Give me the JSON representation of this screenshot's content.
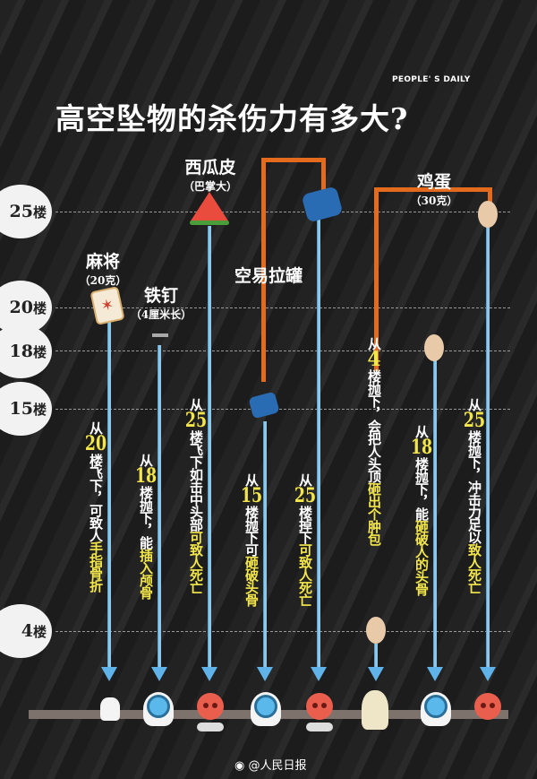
{
  "logo": "PEOPLE' S DAILY",
  "title": "高空坠物的杀伤力有多大?",
  "floors": [
    {
      "n": "25",
      "u": "楼"
    },
    {
      "n": "20",
      "u": "楼"
    },
    {
      "n": "18",
      "u": "楼"
    },
    {
      "n": "15",
      "u": "楼"
    },
    {
      "n": "4",
      "u": "楼"
    }
  ],
  "objects": {
    "mahjong": {
      "name": "麻将",
      "sub": "（20克）"
    },
    "nail": {
      "name": "铁钉",
      "sub": "（4厘米长）"
    },
    "watermelon": {
      "name": "西瓜皮",
      "sub": "（巴掌大）"
    },
    "can": {
      "name": "空易拉罐"
    },
    "egg": {
      "name": "鸡蛋",
      "sub": "（30克）"
    }
  },
  "descriptions": [
    {
      "a": "从",
      "num": "20",
      "b": "楼飞下，可致人",
      "hl": "手指骨折"
    },
    {
      "a": "从",
      "num": "18",
      "b": "楼抛下，能",
      "hl": "插入颅骨"
    },
    {
      "a": "从",
      "num": "25",
      "b": "楼飞下如击中头部",
      "hl": "可致人死亡"
    },
    {
      "a": "从",
      "num": "15",
      "b": "楼抛下可",
      "hl": "砸破头骨"
    },
    {
      "a": "从",
      "num": "25",
      "b": "楼掉下",
      "hl": "可致人死亡"
    },
    {
      "a": "从",
      "num": "4",
      "b": "楼抛下，会把人头顶",
      "hl": "砸出个肿包"
    },
    {
      "a": "从",
      "num": "18",
      "b": "楼抛下，能",
      "hl": "砸破人的头骨"
    },
    {
      "a": "从",
      "num": "25",
      "b": "楼抛下，冲击力足以",
      "hl": "致人死亡"
    }
  ],
  "outcome_icons": [
    "fractured-finger",
    "pierced-skull",
    "skull-death",
    "pierced-skull",
    "skull-death",
    "bump-head",
    "cracked-skull",
    "skull-death"
  ],
  "footer": "@人民日报",
  "colors": {
    "highlight": "#f3e64a",
    "bracket": "#e46a1e",
    "line": "#8fc7e8",
    "skull": "#ea5e4e"
  }
}
